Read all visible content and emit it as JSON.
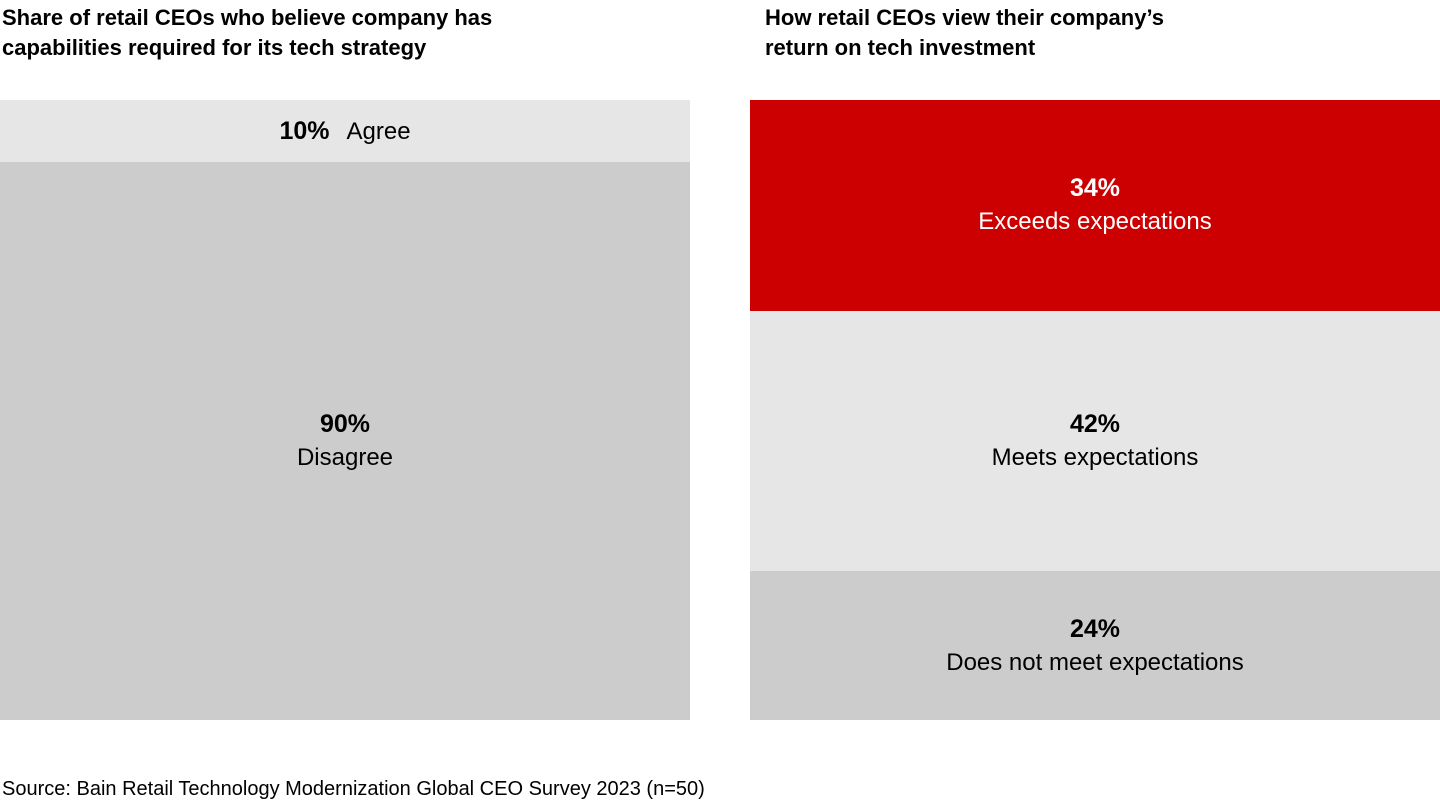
{
  "colors": {
    "accent_red": "#cc0000",
    "light_gray": "#e6e6e6",
    "medium_gray": "#cccccc",
    "text_black": "#000000",
    "text_white": "#ffffff",
    "background": "#ffffff"
  },
  "chart_data": [
    {
      "type": "bar",
      "subtype": "stacked-vertical-100",
      "title": "Share of retail CEOs who believe company has capabilities required for its tech strategy",
      "title_lines": [
        "Share of retail CEOs who believe company has",
        "capabilities required for its tech strategy"
      ],
      "categories": [
        "Agree",
        "Disagree"
      ],
      "values": [
        10,
        90
      ],
      "unit": "%",
      "ylim": [
        0,
        100
      ],
      "grid": false,
      "legend": "none",
      "segment_colors": [
        "#e6e6e6",
        "#cccccc"
      ],
      "label_colors": [
        "#000000",
        "#000000"
      ],
      "label_layout": [
        "inline",
        "stacked"
      ]
    },
    {
      "type": "bar",
      "subtype": "stacked-vertical-100",
      "title": "How retail CEOs view their company’s return on tech investment",
      "title_lines": [
        "How retail CEOs view their company’s",
        "return on tech investment"
      ],
      "categories": [
        "Exceeds expectations",
        "Meets expectations",
        "Does not meet expectations"
      ],
      "values": [
        34,
        42,
        24
      ],
      "unit": "%",
      "ylim": [
        0,
        100
      ],
      "grid": false,
      "legend": "none",
      "segment_colors": [
        "#cc0000",
        "#e6e6e6",
        "#cccccc"
      ],
      "label_colors": [
        "#ffffff",
        "#000000",
        "#000000"
      ],
      "label_layout": [
        "stacked",
        "stacked",
        "stacked"
      ]
    }
  ],
  "source": "Source: Bain Retail Technology Modernization Global CEO Survey 2023 (n=50)"
}
